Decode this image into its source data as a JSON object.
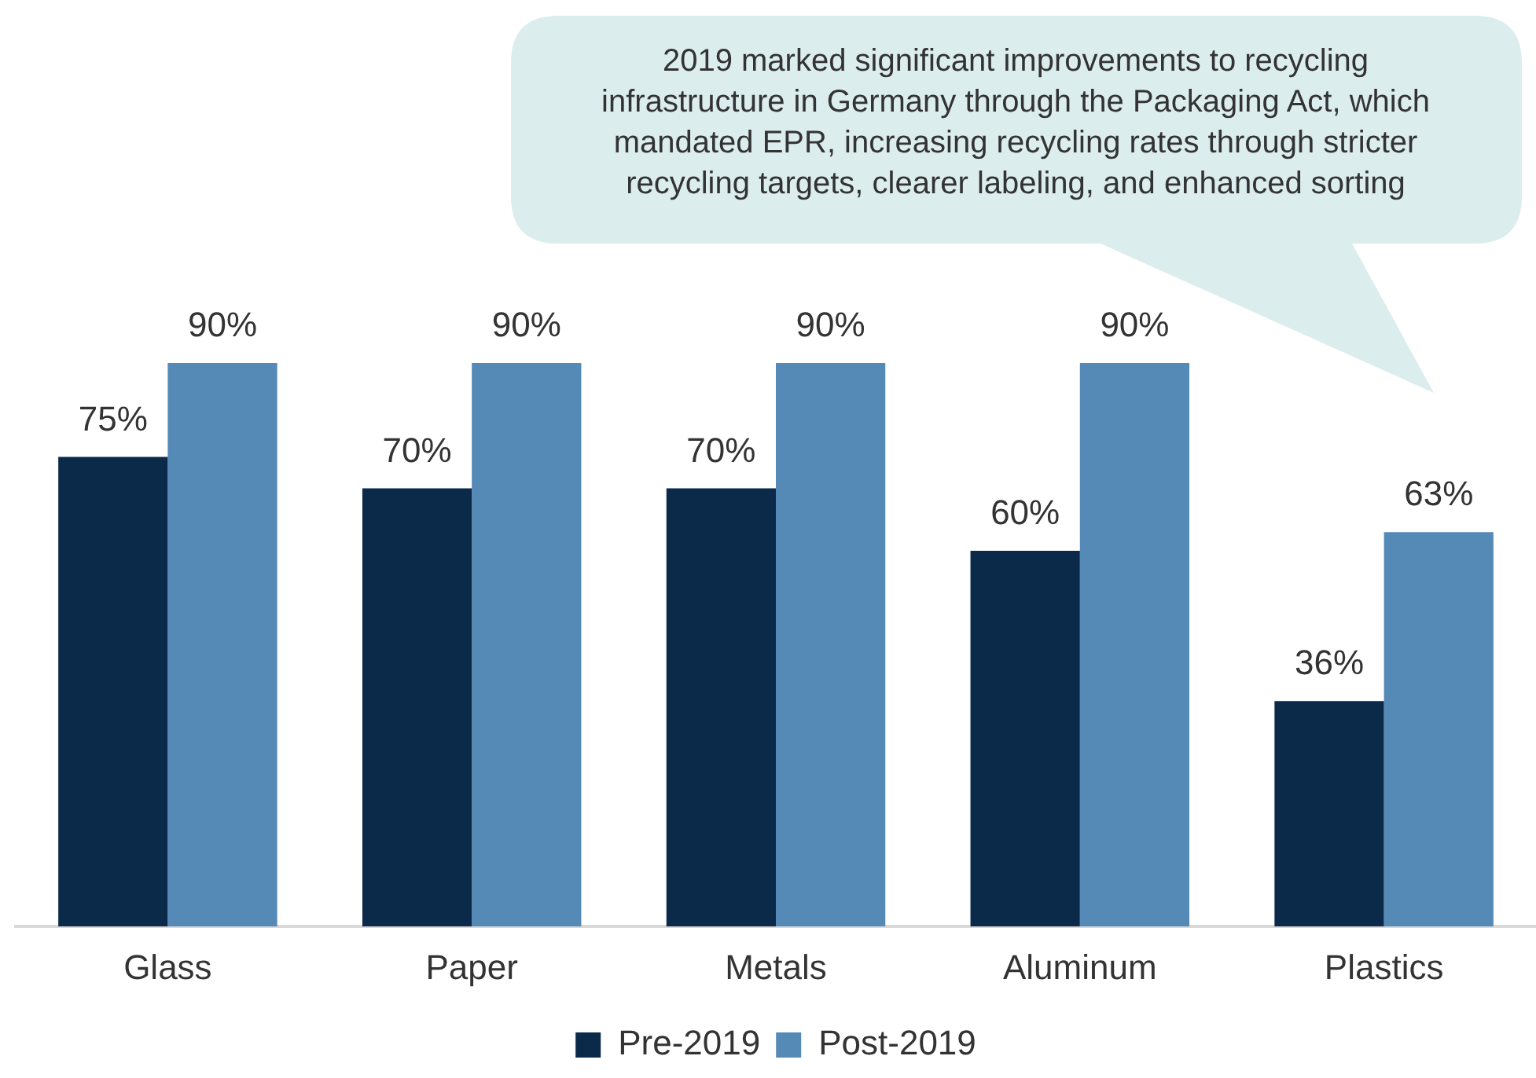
{
  "chart_data": {
    "type": "bar",
    "categories": [
      "Glass",
      "Paper",
      "Metals",
      "Aluminum",
      "Plastics"
    ],
    "series": [
      {
        "name": "Pre-2019",
        "color": "#0b2a4a",
        "values": [
          75,
          70,
          70,
          60,
          36
        ],
        "value_labels": [
          "75%",
          "70%",
          "70%",
          "60%",
          "36%"
        ]
      },
      {
        "name": "Post-2019",
        "color": "#5589b6",
        "values": [
          90,
          90,
          90,
          90,
          63
        ],
        "value_labels": [
          "90%",
          "90%",
          "90%",
          "90%",
          "63%"
        ]
      }
    ],
    "tick_labels": "x",
    "grid": false,
    "legend": "bottom",
    "annotations": [
      "2019 marked significant improvements to recycling infrastructure in Germany through the Packaging Act, which mandated EPR, increasing recycling rates through stricter recycling targets, clearer labeling, and enhanced sorting"
    ]
  }
}
